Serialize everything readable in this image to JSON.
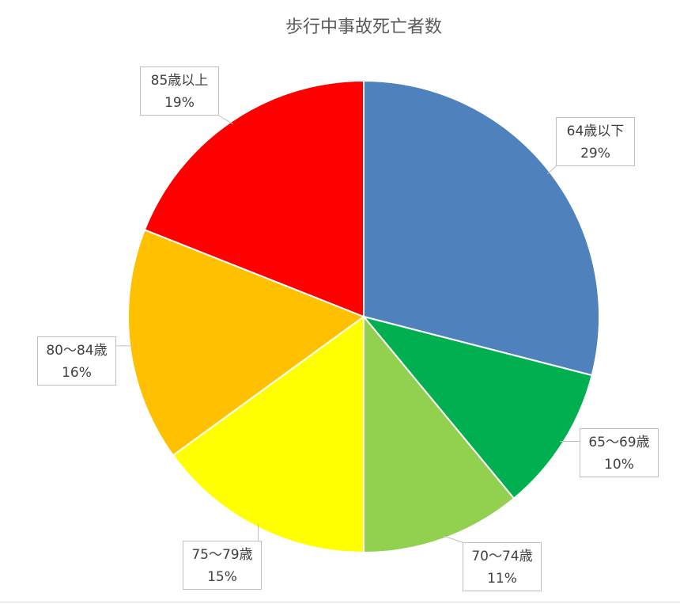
{
  "chart_data": {
    "type": "pie",
    "title": "歩行中事故死亡者数",
    "start": "top",
    "direction": "clockwise",
    "slices": [
      {
        "label": "64歳以下",
        "percent_label": "29%",
        "value": 29,
        "color": "#4F81BD"
      },
      {
        "label": "65～69歳",
        "percent_label": "10%",
        "value": 10,
        "color": "#00B050"
      },
      {
        "label": "70～74歳",
        "percent_label": "11%",
        "value": 11,
        "color": "#92D050"
      },
      {
        "label": "75～79歳",
        "percent_label": "15%",
        "value": 15,
        "color": "#FFFF00"
      },
      {
        "label": "80～84歳",
        "percent_label": "16%",
        "value": 16,
        "color": "#FFC000"
      },
      {
        "label": "85歳以上",
        "percent_label": "19%",
        "value": 19,
        "color": "#FF0000"
      }
    ]
  }
}
